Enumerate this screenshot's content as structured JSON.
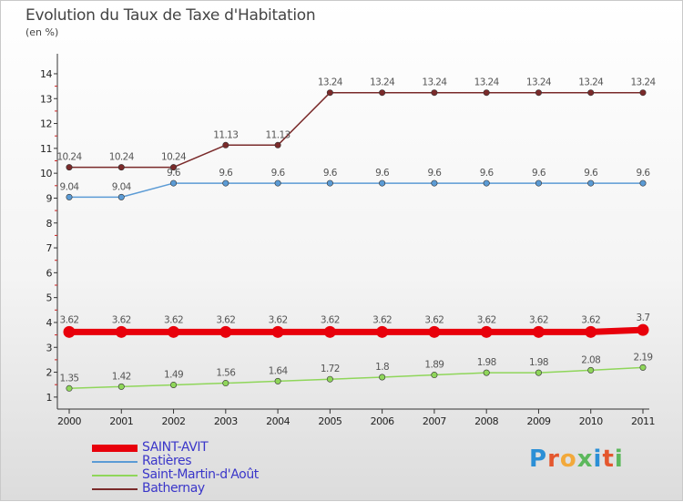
{
  "title": "Evolution du Taux de Taxe d'Habitation",
  "subtitle": "(en %)",
  "logo": {
    "text": "Proxiti",
    "colors": [
      "#2b8fd6",
      "#e4572e",
      "#f2a93b",
      "#5cb85c",
      "#2b8fd6",
      "#e4572e",
      "#5cb85c"
    ]
  },
  "chart_data": {
    "type": "line",
    "x": [
      "2000",
      "2001",
      "2002",
      "2003",
      "2004",
      "2005",
      "2006",
      "2007",
      "2008",
      "2009",
      "2010",
      "2011"
    ],
    "ylim": [
      0,
      14
    ],
    "yticks": [
      1,
      2,
      3,
      4,
      5,
      6,
      7,
      8,
      9,
      10,
      11,
      12,
      13,
      14
    ],
    "grid": false,
    "legend_position": "bottom-left",
    "series": [
      {
        "name": "SAINT-AVIT",
        "color": "#e8000b",
        "width": 7,
        "values": [
          3.62,
          3.62,
          3.62,
          3.62,
          3.62,
          3.62,
          3.62,
          3.62,
          3.62,
          3.62,
          3.62,
          3.7
        ],
        "labels": [
          "3.62",
          "3.62",
          "3.62",
          "3.62",
          "3.62",
          "3.62",
          "3.62",
          "3.62",
          "3.62",
          "3.62",
          "3.62",
          "3.7"
        ]
      },
      {
        "name": "Ratières",
        "color": "#5b9bd5",
        "width": 1.5,
        "values": [
          9.04,
          9.04,
          9.6,
          9.6,
          9.6,
          9.6,
          9.6,
          9.6,
          9.6,
          9.6,
          9.6,
          9.6
        ],
        "labels": [
          "9.04",
          "9.04",
          "9.6",
          "9.6",
          "9.6",
          "9.6",
          "9.6",
          "9.6",
          "9.6",
          "9.6",
          "9.6",
          "9.6"
        ]
      },
      {
        "name": "Saint-Martin-d'Août",
        "color": "#8fd65a",
        "width": 1.5,
        "values": [
          1.35,
          1.42,
          1.49,
          1.56,
          1.64,
          1.72,
          1.8,
          1.89,
          1.98,
          1.98,
          2.08,
          2.19
        ],
        "labels": [
          "1.35",
          "1.42",
          "1.49",
          "1.56",
          "1.64",
          "1.72",
          "1.8",
          "1.89",
          "1.98",
          "1.98",
          "2.08",
          "2.19"
        ]
      },
      {
        "name": "Bathernay",
        "color": "#7a2a2a",
        "width": 1.5,
        "values": [
          10.24,
          10.24,
          10.24,
          11.13,
          11.13,
          13.24,
          13.24,
          13.24,
          13.24,
          13.24,
          13.24,
          13.24
        ],
        "labels": [
          "10.24",
          "10.24",
          "10.24",
          "11.13",
          "11.13",
          "13.24",
          "13.24",
          "13.24",
          "13.24",
          "13.24",
          "13.24",
          "13.24"
        ]
      }
    ]
  }
}
